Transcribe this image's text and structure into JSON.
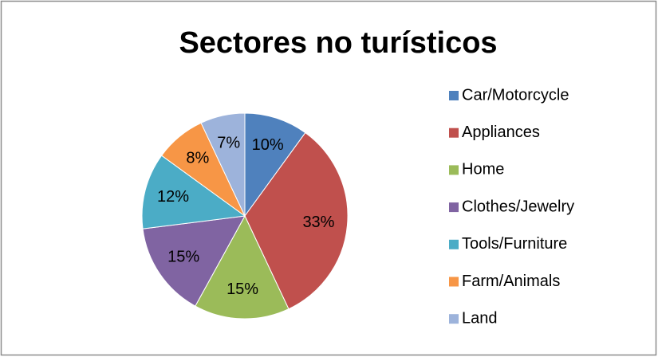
{
  "chart_data": {
    "type": "pie",
    "title": "Sectores no turísticos",
    "categories": [
      "Car/Motorcycle",
      "Appliances",
      "Home",
      "Clothes/Jewelry",
      "Tools/Furniture",
      "Farm/Animals",
      "Land"
    ],
    "values": [
      10,
      33,
      15,
      15,
      12,
      8,
      7
    ],
    "value_labels": [
      "10%",
      "33%",
      "15%",
      "15%",
      "12%",
      "8%",
      "7%"
    ],
    "colors": [
      "#4f81bd",
      "#c0504d",
      "#9bbb59",
      "#8064a2",
      "#4bacc6",
      "#f79646",
      "#9db3db"
    ],
    "legend": "right"
  }
}
